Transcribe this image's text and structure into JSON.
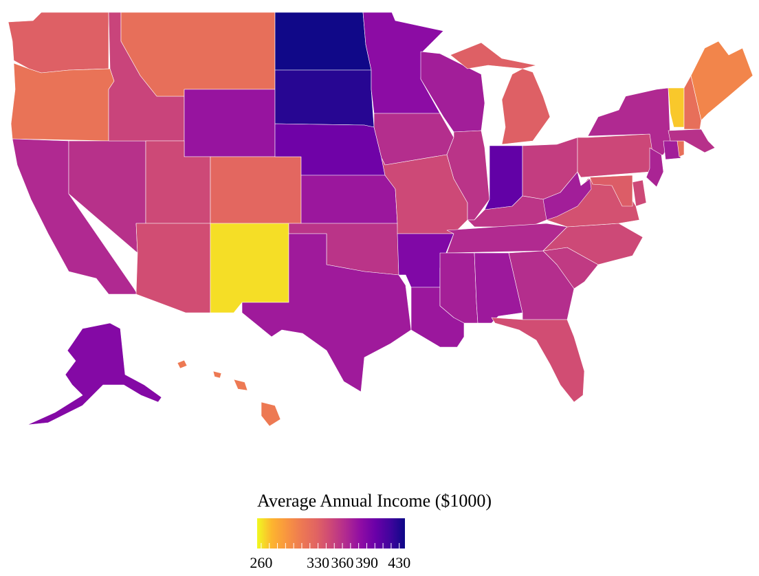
{
  "legend": {
    "title": "Average Annual Income ($1000)",
    "ticks": [
      {
        "label": "260",
        "value": 260
      },
      {
        "label": "330",
        "value": 330
      },
      {
        "label": "360",
        "value": 360
      },
      {
        "label": "390",
        "value": 390
      },
      {
        "label": "430",
        "value": 430
      }
    ],
    "range": [
      255,
      437
    ],
    "colorscale": [
      "#f0f921",
      "#fdb42f",
      "#f89540",
      "#ed7953",
      "#e16462",
      "#cc4778",
      "#b12a90",
      "#8f0da4",
      "#6a00a8",
      "#41049d",
      "#0d0887"
    ]
  },
  "states": [
    {
      "id": "WA",
      "value": 330
    },
    {
      "id": "OR",
      "value": 315
    },
    {
      "id": "CA",
      "value": 365
    },
    {
      "id": "NV",
      "value": 360
    },
    {
      "id": "ID",
      "value": 348
    },
    {
      "id": "MT",
      "value": 318
    },
    {
      "id": "WY",
      "value": 378
    },
    {
      "id": "UT",
      "value": 345
    },
    {
      "id": "AZ",
      "value": 342
    },
    {
      "id": "CO",
      "value": 325
    },
    {
      "id": "NM",
      "value": 262
    },
    {
      "id": "ND",
      "value": 436
    },
    {
      "id": "SD",
      "value": 428
    },
    {
      "id": "NE",
      "value": 398
    },
    {
      "id": "KS",
      "value": 376
    },
    {
      "id": "OK",
      "value": 358
    },
    {
      "id": "TX",
      "value": 374
    },
    {
      "id": "MN",
      "value": 384
    },
    {
      "id": "IA",
      "value": 362
    },
    {
      "id": "MO",
      "value": 345
    },
    {
      "id": "AR",
      "value": 390
    },
    {
      "id": "LA",
      "value": 376
    },
    {
      "id": "WI",
      "value": 372
    },
    {
      "id": "IL",
      "value": 358
    },
    {
      "id": "MI",
      "value": 330
    },
    {
      "id": "IN",
      "value": 404
    },
    {
      "id": "OH",
      "value": 352
    },
    {
      "id": "KY",
      "value": 357
    },
    {
      "id": "TN",
      "value": 364
    },
    {
      "id": "MS",
      "value": 371
    },
    {
      "id": "AL",
      "value": 375
    },
    {
      "id": "GA",
      "value": 362
    },
    {
      "id": "FL",
      "value": 342
    },
    {
      "id": "SC",
      "value": 354
    },
    {
      "id": "NC",
      "value": 345
    },
    {
      "id": "VA",
      "value": 340
    },
    {
      "id": "WV",
      "value": 372
    },
    {
      "id": "PA",
      "value": 346
    },
    {
      "id": "NY",
      "value": 365
    },
    {
      "id": "NJ",
      "value": 368
    },
    {
      "id": "DE",
      "value": 345
    },
    {
      "id": "MD",
      "value": 332
    },
    {
      "id": "CT",
      "value": 372
    },
    {
      "id": "RI",
      "value": 318
    },
    {
      "id": "MA",
      "value": 360
    },
    {
      "id": "VT",
      "value": 268
    },
    {
      "id": "NH",
      "value": 318
    },
    {
      "id": "ME",
      "value": 302
    },
    {
      "id": "AK",
      "value": 388
    },
    {
      "id": "HI",
      "value": 310
    }
  ]
}
